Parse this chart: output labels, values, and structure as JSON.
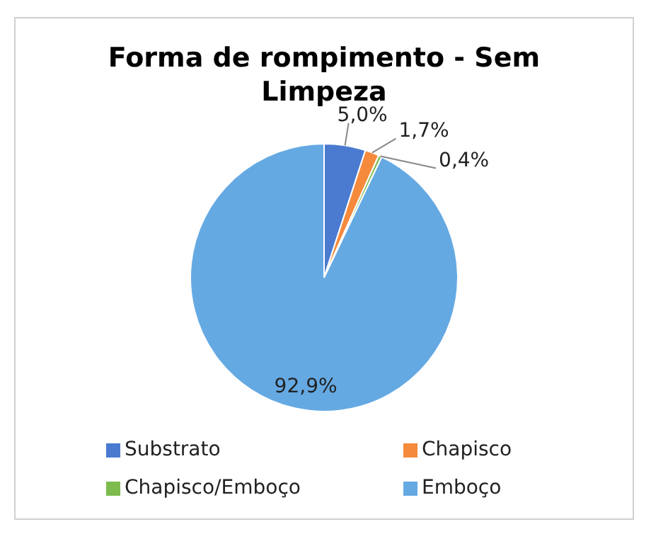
{
  "chart_data": {
    "type": "pie",
    "title": "Forma de rompimento - Sem Limpeza",
    "categories": [
      "Substrato",
      "Chapisco",
      "Chapisco/Emboço",
      "Emboço"
    ],
    "values": [
      5.0,
      1.7,
      0.4,
      92.9
    ],
    "value_labels": [
      "5,0%",
      "1,7%",
      "0,4%",
      "92,9%"
    ],
    "colors": [
      "#4a7bd0",
      "#f58a3c",
      "#7dbb4e",
      "#65a9e3"
    ],
    "legend": "bottom"
  }
}
